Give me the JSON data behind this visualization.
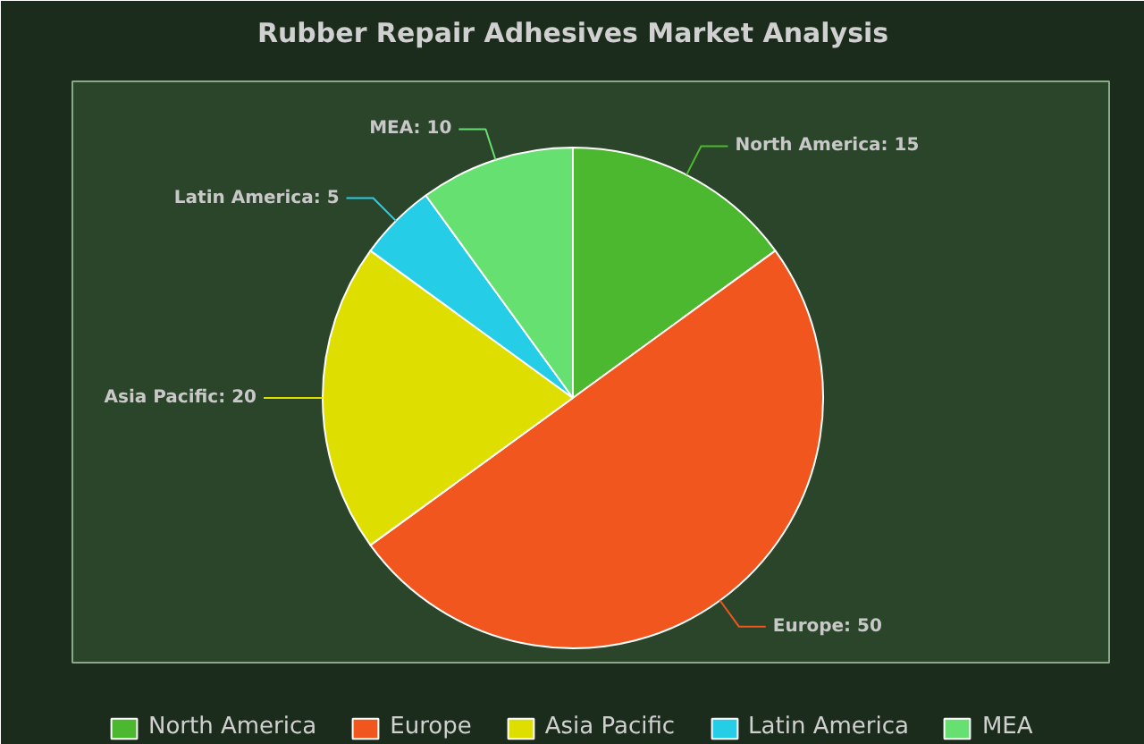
{
  "chart_data": {
    "type": "pie",
    "title": "Rubber Repair Adhesives Market Analysis",
    "categories": [
      "North America",
      "Europe",
      "Asia Pacific",
      "Latin America",
      "MEA"
    ],
    "values": [
      15,
      50,
      20,
      5,
      10
    ],
    "colors": [
      "#4cb82f",
      "#f0561e",
      "#dede00",
      "#26cde6",
      "#66e070"
    ],
    "value_labels": [
      "North America: 15",
      "Europe: 50",
      "Asia Pacific: 20",
      "Latin America: 5",
      "MEA: 10"
    ],
    "legend": "bottom"
  }
}
